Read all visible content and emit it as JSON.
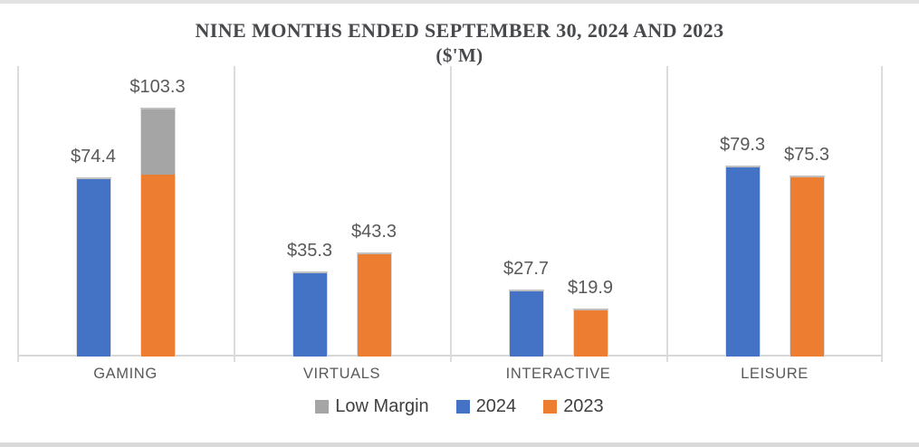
{
  "chart_data": {
    "type": "bar",
    "title": "NINE MONTHS ENDED SEPTEMBER 30, 2024 AND 2023",
    "subtitle": "($'M)",
    "categories": [
      "GAMING",
      "VIRTUALS",
      "INTERACTIVE",
      "LEISURE"
    ],
    "series": [
      {
        "name": "2024",
        "color": "#4472C4",
        "values": [
          74.4,
          35.3,
          27.7,
          79.3
        ],
        "labels": [
          "$74.4",
          "$35.3",
          "$27.7",
          "$79.3"
        ]
      },
      {
        "name": "2023",
        "color": "#ED7D31",
        "values": [
          103.3,
          43.3,
          19.9,
          75.3
        ],
        "labels": [
          "$103.3",
          "$43.3",
          "$19.9",
          "$75.3"
        ]
      }
    ],
    "low_margin": {
      "name": "Low Margin",
      "color": "#A5A5A5",
      "note": "gray segment stacked atop 2023 bar, values estimated from pixels",
      "values": [
        27.4,
        0,
        0,
        0
      ]
    },
    "legend": [
      {
        "label": "Low Margin",
        "color": "#A5A5A5"
      },
      {
        "label": "2024",
        "color": "#4472C4"
      },
      {
        "label": "2023",
        "color": "#ED7D31"
      }
    ],
    "ylim": [
      0,
      120.6
    ],
    "grid": "vertical-panel-separators",
    "legend_position": "bottom-center",
    "label_color": "#595959",
    "gridline_color": "#dcdcdc"
  }
}
